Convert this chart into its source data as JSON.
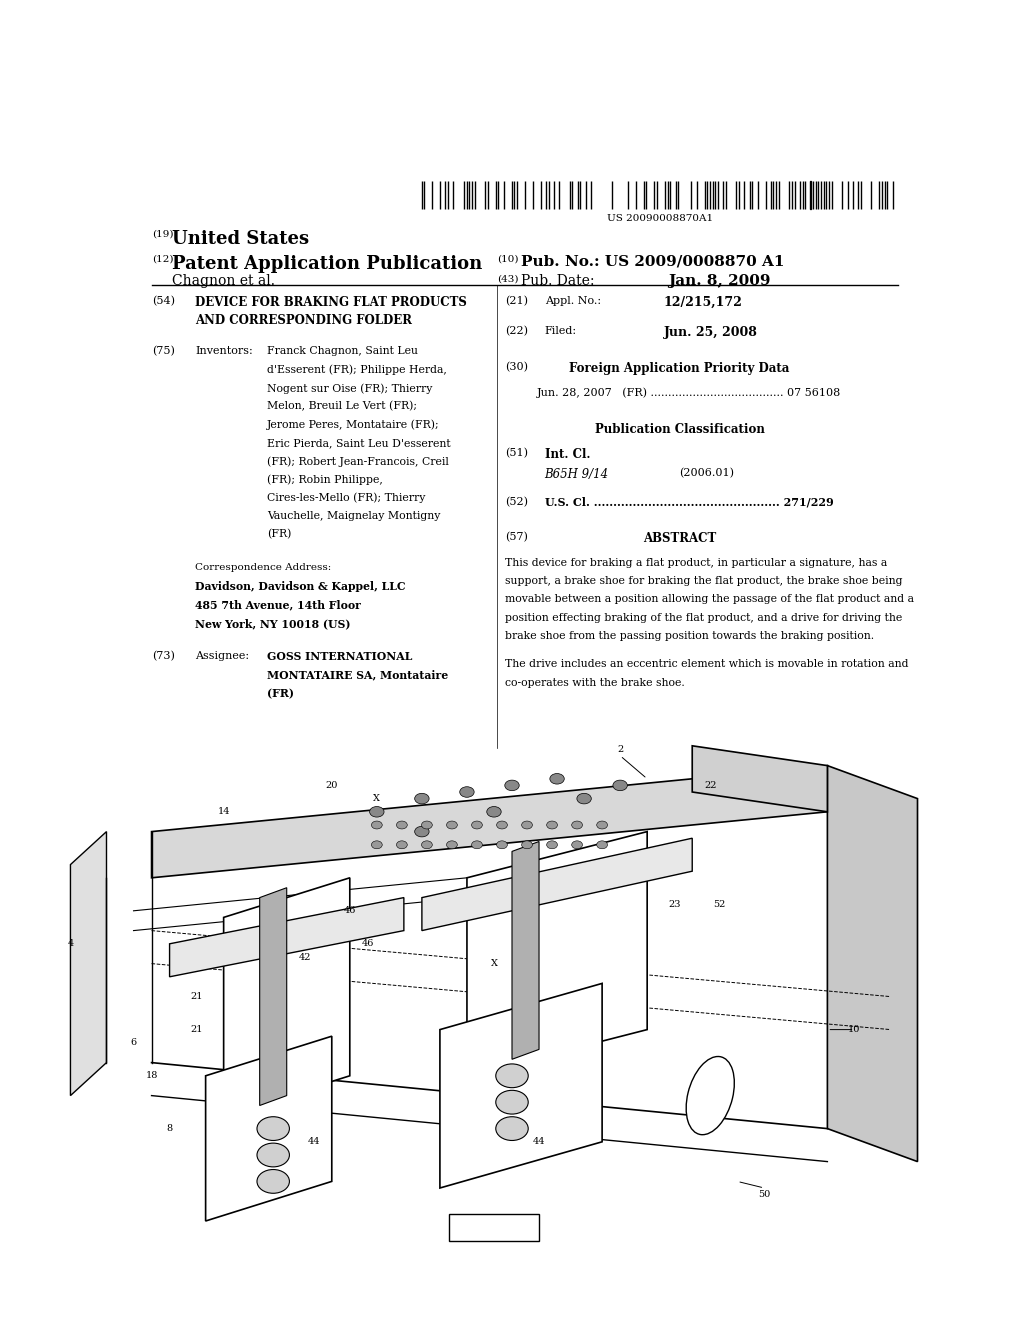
{
  "background_color": "#ffffff",
  "page_width": 10.24,
  "page_height": 13.2,
  "barcode_text": "US 20090008870A1",
  "header": {
    "number_19": "(19)",
    "united_states": "United States",
    "number_12": "(12)",
    "patent_app": "Patent Application Publication",
    "inventor_line": "Chagnon et al.",
    "number_10": "(10)",
    "pub_no_label": "Pub. No.:",
    "pub_no": "US 2009/0008870 A1",
    "number_43": "(43)",
    "pub_date_label": "Pub. Date:",
    "pub_date": "Jan. 8, 2009"
  },
  "left_column": {
    "section_54_num": "(54)",
    "section_54_title": "DEVICE FOR BRAKING FLAT PRODUCTS\nAND CORRESPONDING FOLDER",
    "section_75_num": "(75)",
    "section_75_label": "Inventors:",
    "section_75_text": "Franck Chagnon, Saint Leu\nd'Esserent (FR); Philippe Herda,\nNogent sur Oise (FR); Thierry\nMelon, Breuil Le Vert (FR);\nJerome Peres, Montataire (FR);\nEric Pierda, Saint Leu D'esserent\n(FR); Robert Jean-Francois, Creil\n(FR); Robin Philippe,\nCires-les-Mello (FR); Thierry\nVauchelle, Maignelay Montigny\n(FR)",
    "correspondence_label": "Correspondence Address:",
    "correspondence_text": "Davidson, Davidson & Kappel, LLC\n485 7th Avenue, 14th Floor\nNew York, NY 10018 (US)",
    "section_73_num": "(73)",
    "section_73_label": "Assignee:",
    "section_73_text": "GOSS INTERNATIONAL\nMONTATAIRE SA, Montataire\n(FR)"
  },
  "right_column": {
    "section_21_num": "(21)",
    "section_21_label": "Appl. No.:",
    "section_21_value": "12/215,172",
    "section_22_num": "(22)",
    "section_22_label": "Filed:",
    "section_22_value": "Jun. 25, 2008",
    "section_30_num": "(30)",
    "section_30_label": "Foreign Application Priority Data",
    "priority_data": "Jun. 28, 2007   (FR) ...................................... 07 56108",
    "pub_class_label": "Publication Classification",
    "section_51_num": "(51)",
    "section_51_label": "Int. Cl.",
    "section_51_class": "B65H 9/14",
    "section_51_year": "(2006.01)",
    "section_52_num": "(52)",
    "section_52_label": "U.S. Cl.",
    "section_52_dots": "................................................",
    "section_52_value": "271/229",
    "section_57_num": "(57)",
    "section_57_label": "ABSTRACT",
    "abstract_text": "This device for braking a flat product, in particular a signature, has a support, a brake shoe for braking the flat product, the brake shoe being movable between a position allowing the passage of the flat product and a position effecting braking of the flat product, and a drive for driving the brake shoe from the passing position towards the braking position.\n\nThe drive includes an eccentric element which is movable in rotation and co-operates with the brake shoe."
  }
}
